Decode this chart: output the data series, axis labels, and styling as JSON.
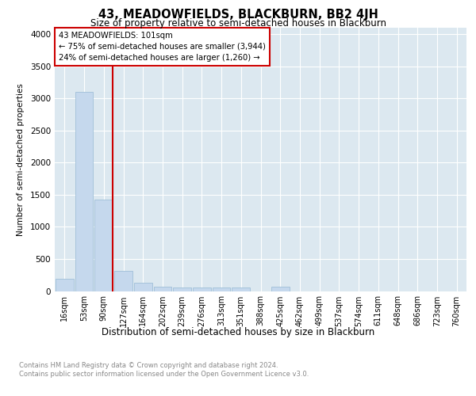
{
  "title": "43, MEADOWFIELDS, BLACKBURN, BB2 4JH",
  "subtitle": "Size of property relative to semi-detached houses in Blackburn",
  "xlabel": "Distribution of semi-detached houses by size in Blackburn",
  "ylabel": "Number of semi-detached properties",
  "footnote": "Contains HM Land Registry data © Crown copyright and database right 2024.\nContains public sector information licensed under the Open Government Licence v3.0.",
  "bar_labels": [
    "16sqm",
    "53sqm",
    "90sqm",
    "127sqm",
    "164sqm",
    "202sqm",
    "239sqm",
    "276sqm",
    "313sqm",
    "351sqm",
    "388sqm",
    "425sqm",
    "462sqm",
    "499sqm",
    "537sqm",
    "574sqm",
    "611sqm",
    "648sqm",
    "686sqm",
    "723sqm",
    "760sqm"
  ],
  "bar_values": [
    190,
    3100,
    1420,
    320,
    130,
    70,
    60,
    55,
    50,
    55,
    0,
    70,
    0,
    0,
    0,
    0,
    0,
    0,
    0,
    0,
    0
  ],
  "bar_color": "#c5d8ed",
  "bar_edge_color": "#a0bfd8",
  "annotation_line1": "43 MEADOWFIELDS: 101sqm",
  "annotation_line2": "← 75% of semi-detached houses are smaller (3,944)",
  "annotation_line3": "24% of semi-detached houses are larger (1,260) →",
  "vline_index": 2,
  "vline_color": "#cc0000",
  "ylim": [
    0,
    4100
  ],
  "yticks": [
    0,
    500,
    1000,
    1500,
    2000,
    2500,
    3000,
    3500,
    4000
  ],
  "annotation_box_color": "#cc0000",
  "plot_bg_color": "#dce8f0"
}
